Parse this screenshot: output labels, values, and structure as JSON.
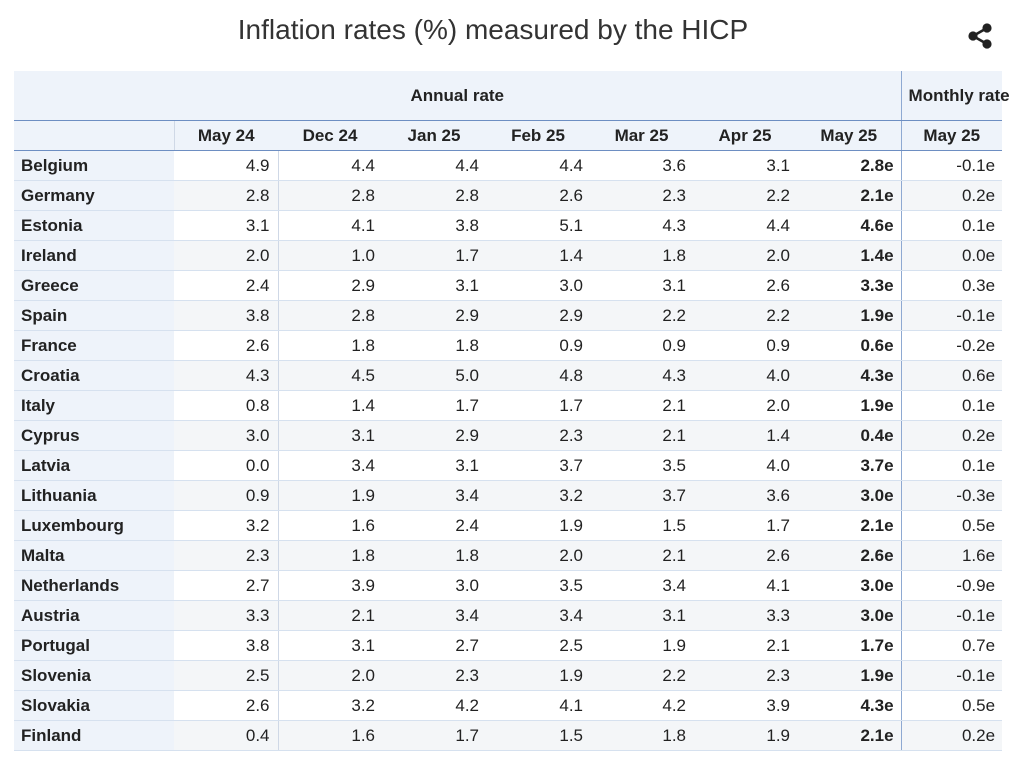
{
  "title": "Inflation rates (%) measured by the HICP",
  "header": {
    "group_annual": "Annual rate",
    "group_monthly": "Monthly rate",
    "columns": [
      "May 24",
      "Dec 24",
      "Jan 25",
      "Feb 25",
      "Mar 25",
      "Apr 25",
      "May 25",
      "May 25"
    ]
  },
  "rows": [
    {
      "country": "Belgium",
      "values": [
        "4.9",
        "4.4",
        "4.4",
        "4.4",
        "3.6",
        "3.1",
        "2.8e",
        "-0.1e"
      ]
    },
    {
      "country": "Germany",
      "values": [
        "2.8",
        "2.8",
        "2.8",
        "2.6",
        "2.3",
        "2.2",
        "2.1e",
        "0.2e"
      ]
    },
    {
      "country": "Estonia",
      "values": [
        "3.1",
        "4.1",
        "3.8",
        "5.1",
        "4.3",
        "4.4",
        "4.6e",
        "0.1e"
      ]
    },
    {
      "country": "Ireland",
      "values": [
        "2.0",
        "1.0",
        "1.7",
        "1.4",
        "1.8",
        "2.0",
        "1.4e",
        "0.0e"
      ]
    },
    {
      "country": "Greece",
      "values": [
        "2.4",
        "2.9",
        "3.1",
        "3.0",
        "3.1",
        "2.6",
        "3.3e",
        "0.3e"
      ]
    },
    {
      "country": "Spain",
      "values": [
        "3.8",
        "2.8",
        "2.9",
        "2.9",
        "2.2",
        "2.2",
        "1.9e",
        "-0.1e"
      ]
    },
    {
      "country": "France",
      "values": [
        "2.6",
        "1.8",
        "1.8",
        "0.9",
        "0.9",
        "0.9",
        "0.6e",
        "-0.2e"
      ]
    },
    {
      "country": "Croatia",
      "values": [
        "4.3",
        "4.5",
        "5.0",
        "4.8",
        "4.3",
        "4.0",
        "4.3e",
        "0.6e"
      ]
    },
    {
      "country": "Italy",
      "values": [
        "0.8",
        "1.4",
        "1.7",
        "1.7",
        "2.1",
        "2.0",
        "1.9e",
        "0.1e"
      ]
    },
    {
      "country": "Cyprus",
      "values": [
        "3.0",
        "3.1",
        "2.9",
        "2.3",
        "2.1",
        "1.4",
        "0.4e",
        "0.2e"
      ]
    },
    {
      "country": "Latvia",
      "values": [
        "0.0",
        "3.4",
        "3.1",
        "3.7",
        "3.5",
        "4.0",
        "3.7e",
        "0.1e"
      ]
    },
    {
      "country": "Lithuania",
      "values": [
        "0.9",
        "1.9",
        "3.4",
        "3.2",
        "3.7",
        "3.6",
        "3.0e",
        "-0.3e"
      ]
    },
    {
      "country": "Luxembourg",
      "values": [
        "3.2",
        "1.6",
        "2.4",
        "1.9",
        "1.5",
        "1.7",
        "2.1e",
        "0.5e"
      ]
    },
    {
      "country": "Malta",
      "values": [
        "2.3",
        "1.8",
        "1.8",
        "2.0",
        "2.1",
        "2.6",
        "2.6e",
        "1.6e"
      ]
    },
    {
      "country": "Netherlands",
      "values": [
        "2.7",
        "3.9",
        "3.0",
        "3.5",
        "3.4",
        "4.1",
        "3.0e",
        "-0.9e"
      ]
    },
    {
      "country": "Austria",
      "values": [
        "3.3",
        "2.1",
        "3.4",
        "3.4",
        "3.1",
        "3.3",
        "3.0e",
        "-0.1e"
      ]
    },
    {
      "country": "Portugal",
      "values": [
        "3.8",
        "3.1",
        "2.7",
        "2.5",
        "1.9",
        "2.1",
        "1.7e",
        "0.7e"
      ]
    },
    {
      "country": "Slovenia",
      "values": [
        "2.5",
        "2.0",
        "2.3",
        "1.9",
        "2.2",
        "2.3",
        "1.9e",
        "-0.1e"
      ]
    },
    {
      "country": "Slovakia",
      "values": [
        "2.6",
        "3.2",
        "4.2",
        "4.1",
        "4.2",
        "3.9",
        "4.3e",
        "0.5e"
      ]
    },
    {
      "country": "Finland",
      "values": [
        "0.4",
        "1.6",
        "1.7",
        "1.5",
        "1.8",
        "1.9",
        "2.1e",
        "0.2e"
      ]
    }
  ],
  "share_icon": "share-icon"
}
